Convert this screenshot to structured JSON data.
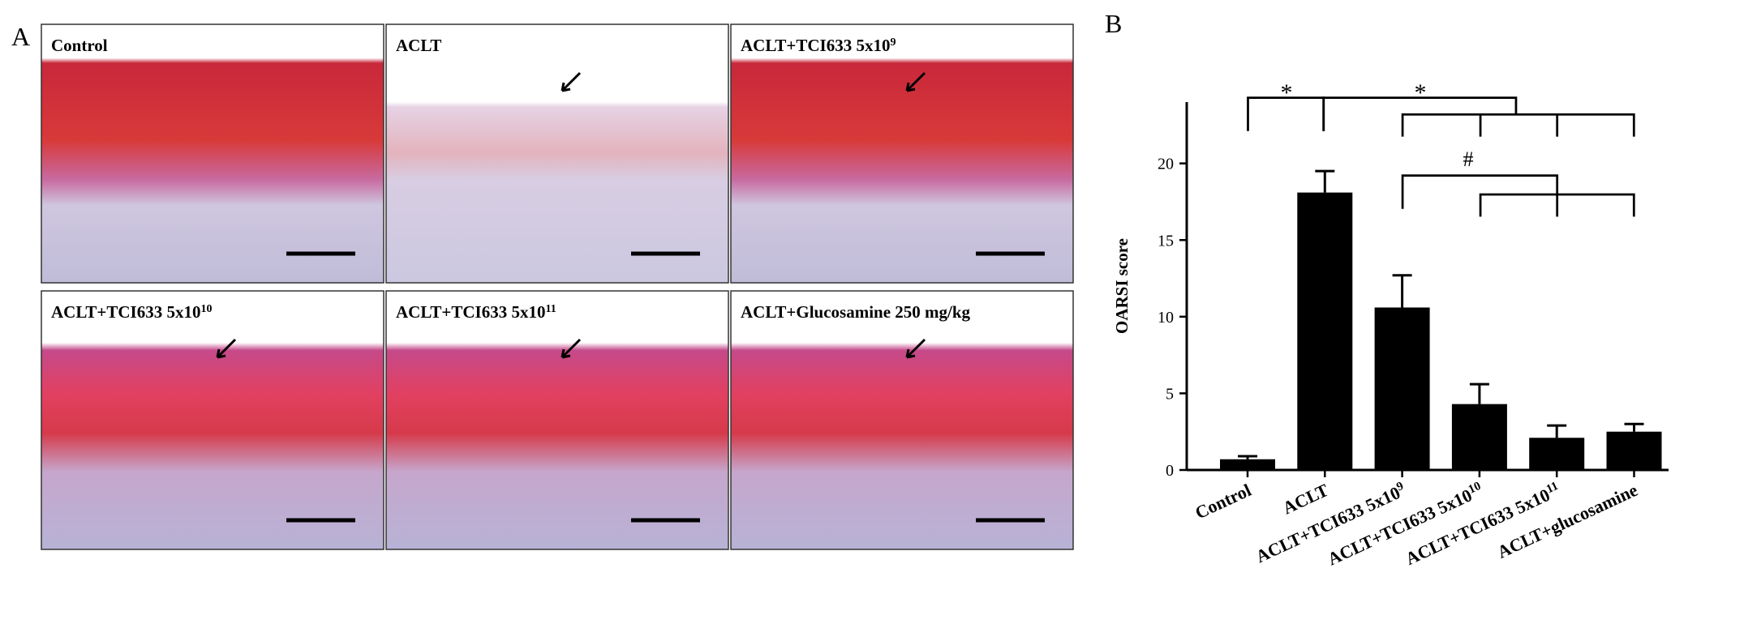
{
  "panel_letters": [
    "A",
    "B"
  ],
  "figure_panels": [
    {
      "label": "Control"
    },
    {
      "label": "ACLT"
    },
    {
      "label": "ACLT+TCI633 5x10",
      "sup": "9"
    },
    {
      "label": "ACLT+TCI633 5x10",
      "sup": "10"
    },
    {
      "label": "ACLT+TCI633 5x10",
      "sup": "11"
    },
    {
      "label": "ACLT+Glucosamine 250 mg/kg"
    }
  ],
  "chart_data": {
    "type": "bar",
    "y_label": "OARSI score",
    "categories": [
      "Control",
      "ACLT",
      "ACLT+TCI633 5x10",
      "ACLT+TCI633 5x10",
      "ACLT+TCI633 5x10",
      "ACLT+glucosamine"
    ],
    "category_superscripts": [
      null,
      null,
      "9",
      "10",
      "11",
      null
    ],
    "values": [
      0.7,
      18.1,
      10.6,
      4.3,
      2.1,
      2.5
    ],
    "errors": [
      0.2,
      1.4,
      2.1,
      1.3,
      0.8,
      0.5
    ],
    "color": "#000000",
    "ylim": [
      0,
      24
    ],
    "yticks": [
      0,
      5,
      10,
      15,
      20
    ],
    "annotations": [
      {
        "text": "*"
      },
      {
        "text": "*"
      },
      {
        "text": "#"
      }
    ]
  }
}
